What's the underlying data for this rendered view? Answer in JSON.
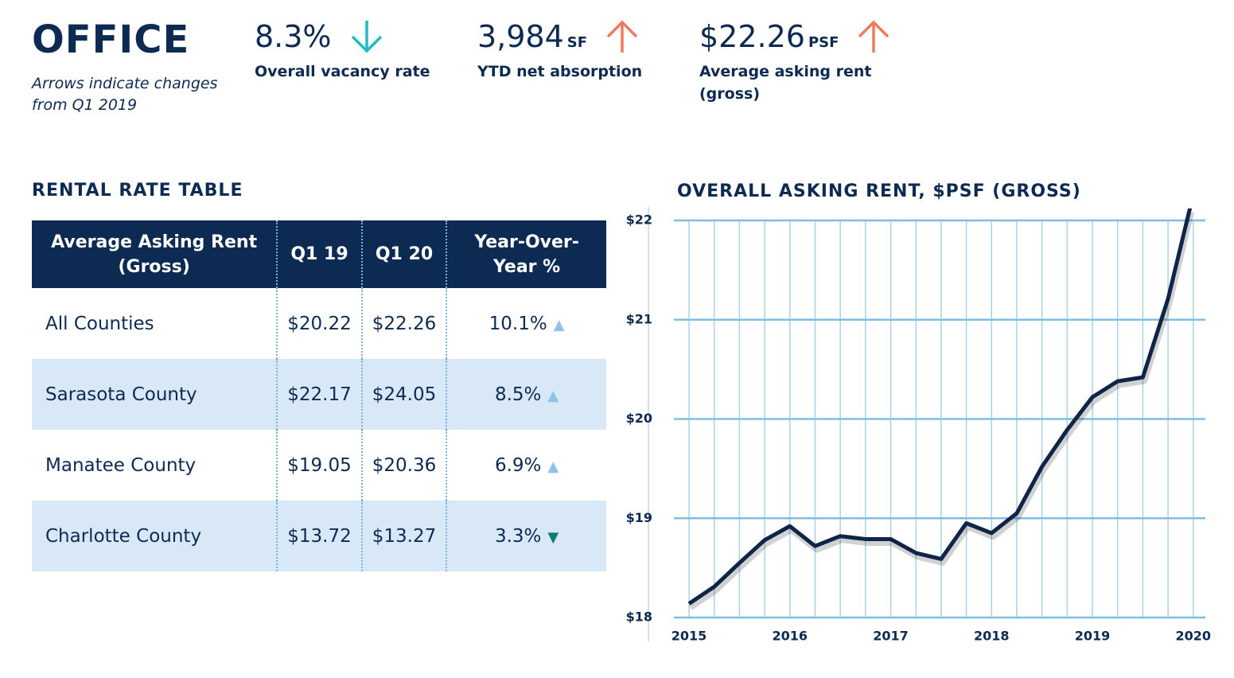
{
  "header": {
    "title": "OFFICE",
    "note": "Arrows indicate changes from Q1 2019"
  },
  "stats": [
    {
      "value": "8.3%",
      "unit": null,
      "label": "Overall vacancy rate",
      "direction": "down",
      "color": "#1fbcc4"
    },
    {
      "value": "3,984",
      "unit": "SF",
      "label": "YTD net absorption",
      "direction": "up",
      "color": "#ef7a5e"
    },
    {
      "value": "$22.26",
      "unit": "PSF",
      "label": "Average asking rent (gross)",
      "direction": "up",
      "color": "#ef7a5e"
    }
  ],
  "table": {
    "title": "RENTAL RATE TABLE",
    "columns": [
      "Average Asking Rent (Gross)",
      "Q1 19",
      "Q1 20",
      "Year-Over-Year %"
    ],
    "rows": [
      [
        "All Counties",
        "$20.22",
        "$22.26",
        "10.1%"
      ],
      [
        "Sarasota County",
        "$22.17",
        "$24.05",
        "8.5%"
      ],
      [
        "Manatee County",
        "$19.05",
        "$20.36",
        "6.9%"
      ],
      [
        "Charlotte County",
        "$13.72",
        "$13.27",
        "3.3%"
      ]
    ],
    "row_directions": [
      "up",
      "up",
      "up",
      "down"
    ]
  },
  "chart_data": {
    "type": "line",
    "title": "OVERALL ASKING RENT, $PSF (GROSS)",
    "x": [
      2015,
      2015.25,
      2015.5,
      2015.75,
      2016,
      2016.25,
      2016.5,
      2016.75,
      2017,
      2017.25,
      2017.5,
      2017.75,
      2018,
      2018.25,
      2018.5,
      2018.75,
      2019,
      2019.25,
      2019.5,
      2019.75,
      2020
    ],
    "series": [
      {
        "name": null,
        "color": "#0f2547",
        "values": [
          18.14,
          18.31,
          18.55,
          18.78,
          18.92,
          18.72,
          18.82,
          18.79,
          18.79,
          18.65,
          18.59,
          18.95,
          18.85,
          19.05,
          19.52,
          19.89,
          20.22,
          20.38,
          20.42,
          21.21,
          22.26
        ]
      }
    ],
    "xlim": [
      2014.85,
      2020.12
    ],
    "xticks": [
      2015,
      2016,
      2017,
      2018,
      2019,
      2020
    ],
    "ylim": [
      18,
      22
    ],
    "yticks": [
      {
        "value": 18,
        "label": "$18"
      },
      {
        "value": 19,
        "label": "$19"
      },
      {
        "value": 20,
        "label": "$20"
      },
      {
        "value": 21,
        "label": "$21"
      },
      {
        "value": 22,
        "label": "$22"
      }
    ],
    "grid": true
  }
}
